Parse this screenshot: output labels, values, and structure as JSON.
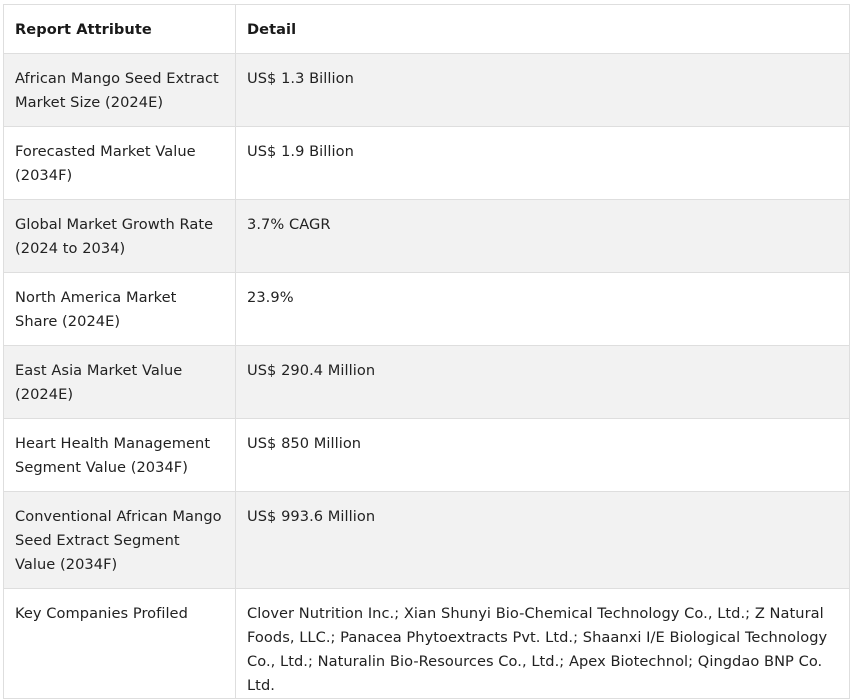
{
  "table": {
    "headers": [
      "Report Attribute",
      "Detail"
    ],
    "rows": [
      {
        "attribute": "African Mango Seed Extract Market Size (2024E)",
        "detail": "US$ 1.3 Billion"
      },
      {
        "attribute": "Forecasted Market Value (2034F)",
        "detail": "US$ 1.9 Billion"
      },
      {
        "attribute": "Global Market Growth Rate (2024 to 2034)",
        "detail": "3.7% CAGR"
      },
      {
        "attribute": "North America Market Share (2024E)",
        "detail": "23.9%"
      },
      {
        "attribute": "East Asia Market Value (2024E)",
        "detail": "US$ 290.4 Million"
      },
      {
        "attribute": "Heart Health Management Segment Value (2034F)",
        "detail": "US$ 850 Million"
      },
      {
        "attribute": "Conventional African Mango Seed Extract Segment Value (2034F)",
        "detail": "US$ 993.6 Million"
      },
      {
        "attribute": "Key Companies Profiled",
        "detail": "Clover Nutrition Inc.; Xian Shunyi Bio-Chemical Technology Co., Ltd.; Z Natural Foods, LLC.; Panacea Phytoextracts Pvt. Ltd.; Shaanxi I/E Biological Technology Co., Ltd.; Naturalin Bio-Resources Co., Ltd.; Apex Biotechnol; Qingdao BNP Co. Ltd."
      }
    ]
  }
}
